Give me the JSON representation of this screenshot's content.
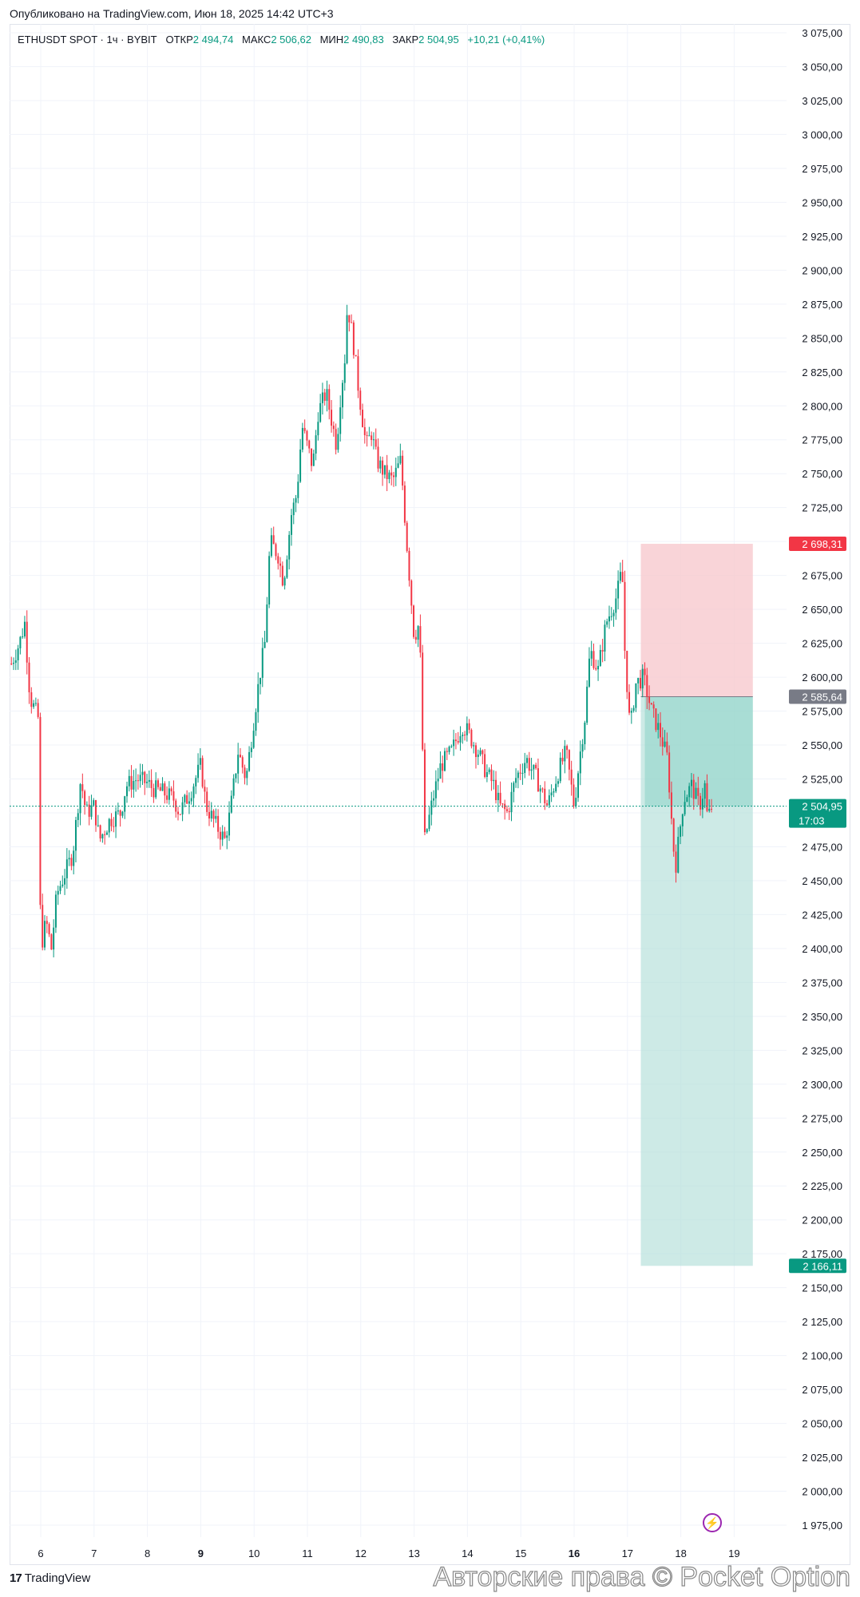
{
  "header": {
    "published": "Опубликовано на TradingView.com, Июн 18, 2025 14:42 UTC+3"
  },
  "legend": {
    "symbol": "ETHUSDT SPOT · 1ч · BYBIT",
    "open_label": "ОТКР",
    "open_value": "2 494,74",
    "high_label": "МАКС",
    "high_value": "2 506,62",
    "low_label": "МИН",
    "low_value": "2 490,83",
    "close_label": "ЗАКР",
    "close_value": "2 504,95",
    "change": "+10,21 (+0,41%)"
  },
  "footer": {
    "logo_mark": "17",
    "logo_text": "TradingView",
    "watermark": "Авторские права © Pocket Option"
  },
  "colors": {
    "up": "#089981",
    "down": "#f23645",
    "stop_zone": "#f7c9ce",
    "target_zone": "#b2dfd8",
    "entry_badge": "#787b86",
    "stop_badge": "#f23645",
    "target_badge": "#089981",
    "grid": "#f0f3fa"
  },
  "chart_data": {
    "type": "candlestick",
    "symbol": "ETHUSDT SPOT",
    "interval": "1ч",
    "ylim": [
      1960,
      3085
    ],
    "y_ticks": [
      "3 075,00",
      "3 050,00",
      "3 025,00",
      "3 000,00",
      "2 975,00",
      "2 950,00",
      "2 925,00",
      "2 900,00",
      "2 875,00",
      "2 850,00",
      "2 825,00",
      "2 800,00",
      "2 775,00",
      "2 750,00",
      "2 725,00",
      "2 700,00",
      "2 675,00",
      "2 650,00",
      "2 625,00",
      "2 600,00",
      "2 575,00",
      "2 550,00",
      "2 525,00",
      "2 500,00",
      "2 475,00",
      "2 450,00",
      "2 425,00",
      "2 400,00",
      "2 375,00",
      "2 350,00",
      "2 325,00",
      "2 300,00",
      "2 275,00",
      "2 250,00",
      "2 225,00",
      "2 200,00",
      "2 175,00",
      "2 150,00",
      "2 125,00",
      "2 100,00",
      "2 075,00",
      "2 050,00",
      "2 025,00",
      "2 000,00",
      "1 975,00"
    ],
    "y_tick_values": [
      3075,
      3050,
      3025,
      3000,
      2975,
      2950,
      2925,
      2900,
      2875,
      2850,
      2825,
      2800,
      2775,
      2750,
      2725,
      2700,
      2675,
      2650,
      2625,
      2600,
      2575,
      2550,
      2525,
      2500,
      2475,
      2450,
      2425,
      2400,
      2375,
      2350,
      2325,
      2300,
      2275,
      2250,
      2225,
      2200,
      2175,
      2150,
      2125,
      2100,
      2075,
      2050,
      2025,
      2000,
      1975
    ],
    "x_ticks": [
      "6",
      "7",
      "8",
      "9",
      "10",
      "11",
      "12",
      "13",
      "14",
      "15",
      "16",
      "17",
      "18",
      "19"
    ],
    "x_tick_bold": [
      false,
      false,
      false,
      true,
      false,
      false,
      false,
      false,
      false,
      false,
      true,
      false,
      false,
      false
    ],
    "x_range_days": [
      5.4,
      19.6
    ],
    "price_path": [
      [
        5.45,
        2610
      ],
      [
        5.6,
        2625
      ],
      [
        5.7,
        2640
      ],
      [
        5.8,
        2585
      ],
      [
        5.95,
        2570
      ],
      [
        6.0,
        2400
      ],
      [
        6.1,
        2420
      ],
      [
        6.2,
        2400
      ],
      [
        6.3,
        2440
      ],
      [
        6.5,
        2460
      ],
      [
        6.6,
        2470
      ],
      [
        6.75,
        2525
      ],
      [
        6.85,
        2500
      ],
      [
        7.0,
        2505
      ],
      [
        7.1,
        2480
      ],
      [
        7.3,
        2495
      ],
      [
        7.5,
        2500
      ],
      [
        7.6,
        2520
      ],
      [
        7.8,
        2525
      ],
      [
        8.0,
        2522
      ],
      [
        8.1,
        2518
      ],
      [
        8.3,
        2515
      ],
      [
        8.5,
        2510
      ],
      [
        8.6,
        2500
      ],
      [
        8.8,
        2515
      ],
      [
        9.0,
        2535
      ],
      [
        9.1,
        2505
      ],
      [
        9.3,
        2490
      ],
      [
        9.45,
        2480
      ],
      [
        9.55,
        2500
      ],
      [
        9.7,
        2545
      ],
      [
        9.85,
        2525
      ],
      [
        10.0,
        2570
      ],
      [
        10.1,
        2600
      ],
      [
        10.2,
        2625
      ],
      [
        10.3,
        2700
      ],
      [
        10.45,
        2690
      ],
      [
        10.55,
        2670
      ],
      [
        10.7,
        2720
      ],
      [
        10.8,
        2735
      ],
      [
        10.9,
        2785
      ],
      [
        11.0,
        2770
      ],
      [
        11.1,
        2755
      ],
      [
        11.2,
        2795
      ],
      [
        11.35,
        2810
      ],
      [
        11.45,
        2790
      ],
      [
        11.55,
        2770
      ],
      [
        11.6,
        2800
      ],
      [
        11.7,
        2835
      ],
      [
        11.75,
        2875
      ],
      [
        11.85,
        2850
      ],
      [
        11.95,
        2815
      ],
      [
        12.1,
        2770
      ],
      [
        12.2,
        2780
      ],
      [
        12.3,
        2760
      ],
      [
        12.45,
        2750
      ],
      [
        12.6,
        2745
      ],
      [
        12.75,
        2760
      ],
      [
        12.85,
        2705
      ],
      [
        13.0,
        2630
      ],
      [
        13.1,
        2640
      ],
      [
        13.15,
        2560
      ],
      [
        13.2,
        2480
      ],
      [
        13.35,
        2510
      ],
      [
        13.5,
        2535
      ],
      [
        13.7,
        2545
      ],
      [
        13.9,
        2565
      ],
      [
        14.0,
        2560
      ],
      [
        14.2,
        2545
      ],
      [
        14.35,
        2530
      ],
      [
        14.5,
        2520
      ],
      [
        14.6,
        2505
      ],
      [
        14.75,
        2500
      ],
      [
        14.9,
        2525
      ],
      [
        15.1,
        2540
      ],
      [
        15.3,
        2525
      ],
      [
        15.5,
        2505
      ],
      [
        15.7,
        2530
      ],
      [
        15.85,
        2545
      ],
      [
        16.0,
        2505
      ],
      [
        16.1,
        2540
      ],
      [
        16.2,
        2570
      ],
      [
        16.3,
        2620
      ],
      [
        16.45,
        2605
      ],
      [
        16.6,
        2640
      ],
      [
        16.7,
        2650
      ],
      [
        16.8,
        2660
      ],
      [
        16.9,
        2680
      ],
      [
        16.95,
        2620
      ],
      [
        17.05,
        2560
      ],
      [
        17.15,
        2595
      ],
      [
        17.3,
        2600
      ],
      [
        17.45,
        2575
      ],
      [
        17.6,
        2560
      ],
      [
        17.75,
        2540
      ],
      [
        17.85,
        2480
      ],
      [
        17.9,
        2460
      ],
      [
        18.05,
        2510
      ],
      [
        18.2,
        2520
      ],
      [
        18.35,
        2505
      ],
      [
        18.45,
        2520
      ],
      [
        18.5,
        2495
      ],
      [
        18.58,
        2505
      ]
    ],
    "current_price": {
      "value": 2504.95,
      "label": "2 504,95",
      "timer": "17:03"
    },
    "position": {
      "type": "short",
      "start_day": 17.25,
      "end_day": 19.35,
      "entry": 2585.64,
      "entry_label": "2 585,64",
      "stop": 2698.31,
      "stop_label": "2 698,31",
      "target": 2166.11,
      "target_label": "2 166,11"
    }
  }
}
